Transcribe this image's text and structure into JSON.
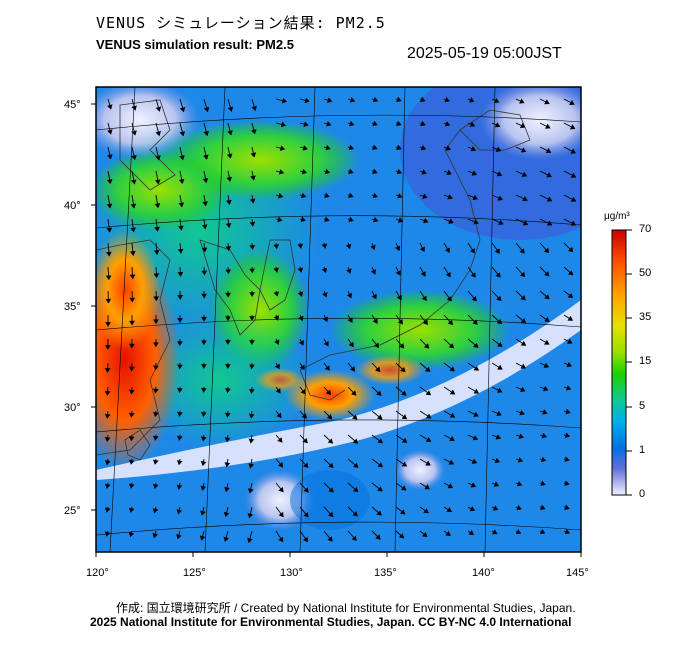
{
  "title_jp": "VENUS シミュレーション結果: PM2.5",
  "title_en": "VENUS simulation result: PM2.5",
  "timestamp": "2025-05-19 05:00JST",
  "map": {
    "lon_labels": [
      "120°",
      "125°",
      "130°",
      "135°",
      "140°",
      "145°"
    ],
    "lat_labels": [
      "45°",
      "40°",
      "35°",
      "30°",
      "25°"
    ],
    "lon_range": [
      120,
      145
    ],
    "lat_range": [
      23,
      46
    ]
  },
  "colorbar": {
    "unit": "μg/m³",
    "ticks": [
      "70",
      "50",
      "35",
      "15",
      "5",
      "1",
      "0"
    ],
    "colors": [
      "#d01000",
      "#ff5a00",
      "#ffa000",
      "#e8e000",
      "#9ce000",
      "#20d000",
      "#10c890",
      "#00b0e8",
      "#0070e0",
      "#3050d8",
      "#8090e0",
      "#e8ecff"
    ]
  },
  "footer": {
    "line1": "作成: 国立環境研究所 / Created by National Institute for Environmental Studies, Japan.",
    "line2": "2025 National Institute for Environmental Studies, Japan. CC BY-NC 4.0 International"
  }
}
